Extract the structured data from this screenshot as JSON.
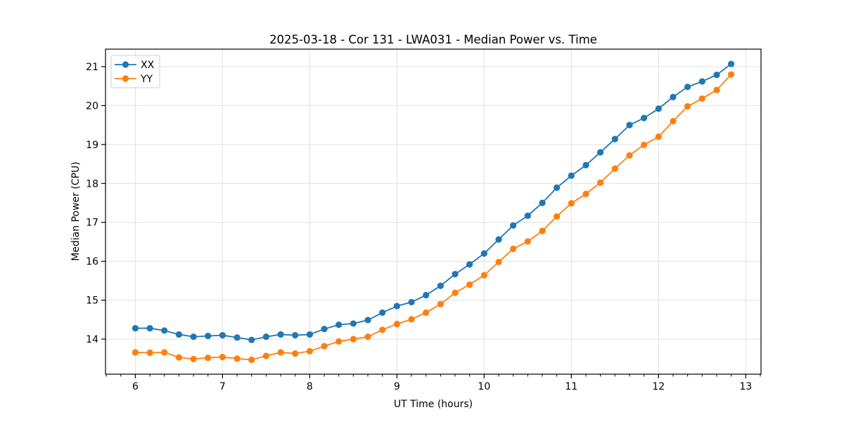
{
  "chart_data": {
    "type": "line",
    "title": "2025-03-18 - Cor 131 - LWA031 - Median Power vs. Time",
    "xlabel": "UT Time (hours)",
    "ylabel": "Median Power (CPU)",
    "xlim": [
      5.658,
      13.175
    ],
    "ylim": [
      13.1,
      21.45
    ],
    "xticks": [
      6,
      7,
      8,
      9,
      10,
      11,
      12,
      13
    ],
    "yticks": [
      14,
      15,
      16,
      17,
      18,
      19,
      20,
      21
    ],
    "x_minor_divisions": 6,
    "grid": true,
    "grid_color": "#e0e0e0",
    "legend_position": "upper left",
    "x": [
      6.0,
      6.167,
      6.333,
      6.5,
      6.667,
      6.833,
      7.0,
      7.167,
      7.333,
      7.5,
      7.667,
      7.833,
      8.0,
      8.167,
      8.333,
      8.5,
      8.667,
      8.833,
      9.0,
      9.167,
      9.333,
      9.5,
      9.667,
      9.833,
      10.0,
      10.167,
      10.333,
      10.5,
      10.667,
      10.833,
      11.0,
      11.167,
      11.333,
      11.5,
      11.667,
      11.833,
      12.0,
      12.167,
      12.333,
      12.5,
      12.667,
      12.833
    ],
    "series": [
      {
        "name": "XX",
        "color": "#1f77b4",
        "values": [
          14.28,
          14.28,
          14.22,
          14.12,
          14.06,
          14.08,
          14.1,
          14.04,
          13.98,
          14.06,
          14.12,
          14.1,
          14.12,
          14.26,
          14.37,
          14.4,
          14.49,
          14.68,
          14.85,
          14.95,
          15.13,
          15.37,
          15.67,
          15.92,
          16.2,
          16.56,
          16.92,
          17.17,
          17.5,
          17.89,
          18.2,
          18.47,
          18.8,
          19.14,
          19.5,
          19.68,
          19.92,
          20.22,
          20.48,
          20.62,
          20.79,
          21.07
        ]
      },
      {
        "name": "YY",
        "color": "#ff7f0e",
        "values": [
          13.66,
          13.65,
          13.66,
          13.53,
          13.49,
          13.52,
          13.54,
          13.5,
          13.47,
          13.57,
          13.66,
          13.63,
          13.69,
          13.82,
          13.94,
          14.0,
          14.06,
          14.24,
          14.39,
          14.51,
          14.68,
          14.9,
          15.19,
          15.4,
          15.64,
          15.98,
          16.32,
          16.51,
          16.78,
          17.15,
          17.49,
          17.73,
          18.02,
          18.38,
          18.72,
          18.99,
          19.2,
          19.6,
          19.98,
          20.18,
          20.4,
          20.8
        ]
      }
    ]
  }
}
